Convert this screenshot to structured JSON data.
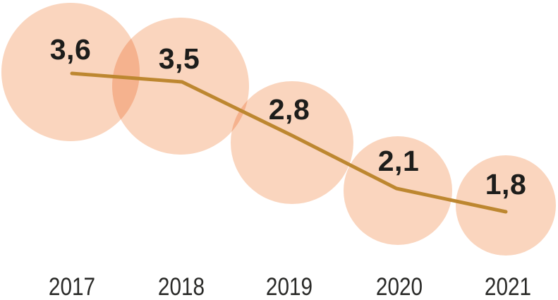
{
  "chart_data": {
    "type": "line",
    "variant": "bubble-line",
    "categories": [
      "2017",
      "2018",
      "2019",
      "2020",
      "2021"
    ],
    "values": [
      3.6,
      3.5,
      2.8,
      2.1,
      1.8
    ],
    "value_labels": [
      "3,6",
      "3,5",
      "2,8",
      "2,1",
      "1,8"
    ],
    "decimal_separator": ",",
    "bubble_size_rule": "radius proportional to sqrt(value)",
    "title": "",
    "xlabel": "",
    "ylabel": "",
    "grid": false,
    "legend": false,
    "axes_visible": false
  },
  "colors": {
    "background": "#FFFFFF",
    "bubble_fill": "#FAD5BE",
    "bubble_overlap": "#F5B28E",
    "line": "#BD8730",
    "value_label": "#1D1D1B",
    "year_label": "#2A2A28"
  }
}
